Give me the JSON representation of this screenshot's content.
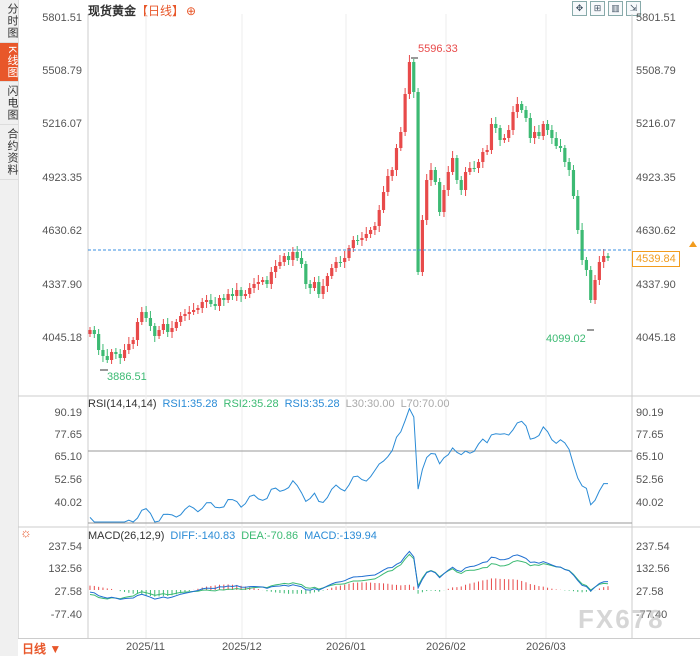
{
  "side_tabs": [
    "分时图",
    "K线图",
    "闪电图",
    "合约资料"
  ],
  "header": {
    "title": "现货黄金",
    "period": "【日线】",
    "zoom_icon": "zoom-in-icon"
  },
  "toolbar": [
    "fullscreen-icon",
    "grid-icon",
    "split-icon",
    "exit-icon"
  ],
  "price_axis": [
    "5801.51",
    "5508.79",
    "5216.07",
    "4923.35",
    "4630.62",
    "4337.90",
    "4045.18"
  ],
  "last_price": "4539.84",
  "high_label": "5596.33",
  "low_label": "3886.51",
  "low2_label": "4099.02",
  "rsi": {
    "title": "RSI(14,14,14)",
    "rsi1": "RSI1:35.28",
    "rsi2": "RSI2:35.28",
    "rsi3": "RSI3:35.28",
    "l30": "L30:30.00",
    "l70": "L70:70.00",
    "axis": [
      "90.19",
      "77.65",
      "65.10",
      "52.56",
      "40.02"
    ]
  },
  "macd": {
    "title": "MACD(26,12,9)",
    "diff": "DIFF:-140.83",
    "dea": "DEA:-70.86",
    "macd": "MACD:-139.94",
    "axis": [
      "237.54",
      "132.56",
      "27.58",
      "-77.40"
    ]
  },
  "x_axis": [
    "2025/11",
    "2025/12",
    "2026/01",
    "2026/02",
    "2026/03"
  ],
  "period_button": "日线",
  "watermark": "FX678",
  "colors": {
    "up": "#e84a4a",
    "down": "#3cba73",
    "accent": "#e8572a",
    "rsi1": "#2a8bd6",
    "rsi2": "#3cba73",
    "macd_diff": "#1f6fd1",
    "macd_dea": "#3cba73"
  }
}
